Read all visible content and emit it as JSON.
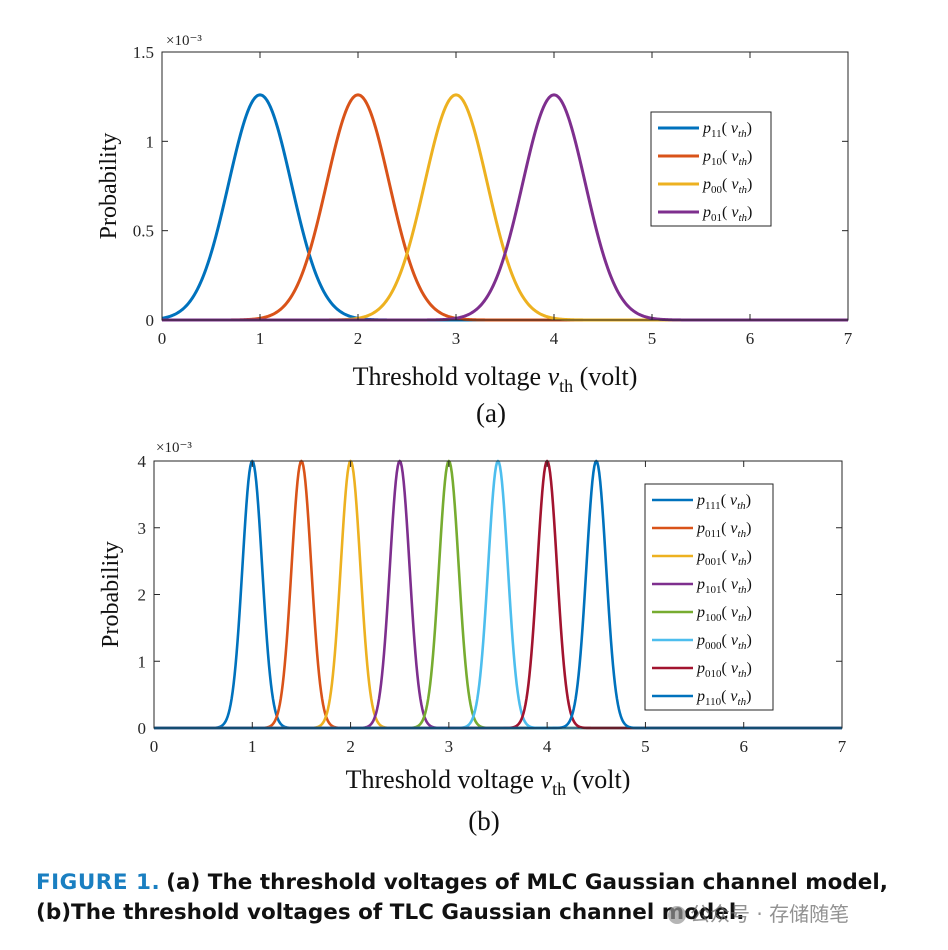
{
  "chart_data": [
    {
      "id": "a",
      "type": "line",
      "panel_label": "(a)",
      "xlabel": "Threshold voltage v_th (volt)",
      "xlabel_parts": {
        "main": "Threshold voltage ",
        "var": "v",
        "sub": "th",
        "tail": " (volt)"
      },
      "ylabel": "Probability",
      "xlim": [
        0,
        7
      ],
      "ylim": [
        0,
        1.5
      ],
      "xticks": [
        0,
        1,
        2,
        3,
        4,
        5,
        6,
        7
      ],
      "yticks": [
        0,
        0.5,
        1,
        1.5
      ],
      "ytick_labels": [
        "0",
        "0.5",
        "1",
        "1.5"
      ],
      "yscale_label": "×10⁻³",
      "legend_position": "top-right",
      "series": [
        {
          "name": "p11(vth)",
          "sub": "11",
          "mean": 1,
          "peak": 1.26,
          "sigma": 0.32,
          "color": "#0072BD"
        },
        {
          "name": "p10(vth)",
          "sub": "10",
          "mean": 2,
          "peak": 1.26,
          "sigma": 0.32,
          "color": "#D95319"
        },
        {
          "name": "p00(vth)",
          "sub": "00",
          "mean": 3,
          "peak": 1.26,
          "sigma": 0.32,
          "color": "#EDB120"
        },
        {
          "name": "p01(vth)",
          "sub": "01",
          "mean": 4,
          "peak": 1.26,
          "sigma": 0.32,
          "color": "#7E2F8E"
        }
      ]
    },
    {
      "id": "b",
      "type": "line",
      "panel_label": "(b)",
      "xlabel": "Threshold voltage v_th (volt)",
      "xlabel_parts": {
        "main": "Threshold voltage ",
        "var": "v",
        "sub": "th",
        "tail": " (volt)"
      },
      "ylabel": "Probability",
      "xlim": [
        0,
        7
      ],
      "ylim": [
        0,
        4
      ],
      "xticks": [
        0,
        1,
        2,
        3,
        4,
        5,
        6,
        7
      ],
      "yticks": [
        0,
        1,
        2,
        3,
        4
      ],
      "ytick_labels": [
        "0",
        "1",
        "2",
        "3",
        "4"
      ],
      "yscale_label": "×10⁻³",
      "legend_position": "top-right",
      "series": [
        {
          "name": "p111(vth)",
          "sub": "111",
          "mean": 1.0,
          "peak": 4,
          "sigma": 0.1,
          "color": "#0072BD"
        },
        {
          "name": "p011(vth)",
          "sub": "011",
          "mean": 1.5,
          "peak": 4,
          "sigma": 0.1,
          "color": "#D95319"
        },
        {
          "name": "p001(vth)",
          "sub": "001",
          "mean": 2.0,
          "peak": 4,
          "sigma": 0.1,
          "color": "#EDB120"
        },
        {
          "name": "p101(vth)",
          "sub": "101",
          "mean": 2.5,
          "peak": 4,
          "sigma": 0.1,
          "color": "#7E2F8E"
        },
        {
          "name": "p100(vth)",
          "sub": "100",
          "mean": 3.0,
          "peak": 4,
          "sigma": 0.1,
          "color": "#77AC30"
        },
        {
          "name": "p000(vth)",
          "sub": "000",
          "mean": 3.5,
          "peak": 4,
          "sigma": 0.1,
          "color": "#4DBEEE"
        },
        {
          "name": "p010(vth)",
          "sub": "010",
          "mean": 4.0,
          "peak": 4,
          "sigma": 0.1,
          "color": "#A2142F"
        },
        {
          "name": "p110(vth)",
          "sub": "110",
          "mean": 4.5,
          "peak": 4,
          "sigma": 0.1,
          "color": "#0072BD"
        }
      ]
    }
  ],
  "caption": {
    "label": "FIGURE 1.",
    "line1": "(a) The threshold voltages of MLC Gaussian channel model,",
    "line2": "(b)The threshold voltages of TLC Gaussian channel model."
  },
  "watermark": "公众号 · 存储随笔",
  "colors": {
    "caption_label": "#1a7fc1",
    "axis": "#262626"
  }
}
